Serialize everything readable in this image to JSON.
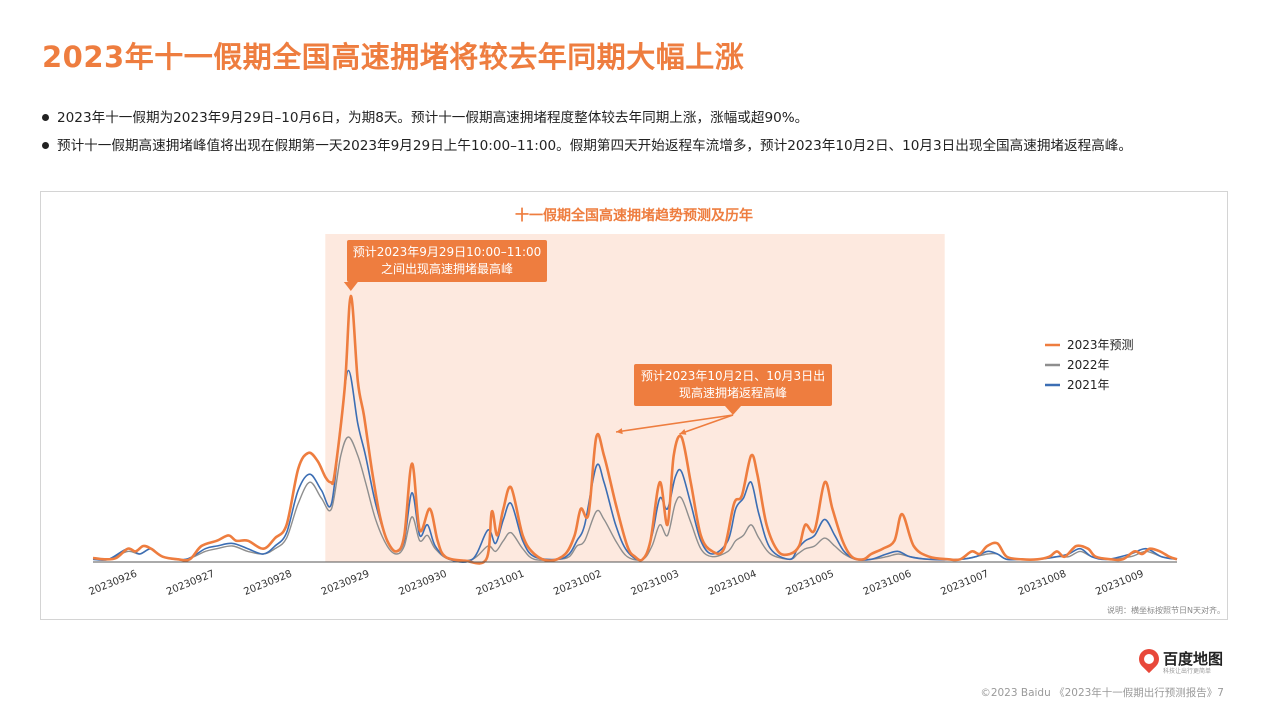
{
  "page_title": "2023年十一假期全国高速拥堵将较去年同期大幅上涨",
  "bullets": [
    "2023年十一假期为2023年9月29日–10月6日，为期8天。预计十一假期高速拥堵程度整体较去年同期上涨，涨幅或超90%。",
    "预计十一假期高速拥堵峰值将出现在假期第一天2023年9月29日上午10:00–11:00。假期第四天开始返程车流增多，预计2023年10月2日、10月3日出现全国高速拥堵返程高峰。"
  ],
  "chart_data": {
    "type": "line",
    "title": "十一假期全国高速拥堵趋势预测及历年",
    "x_labels": [
      "20230926",
      "20230927",
      "20230928",
      "20230929",
      "20230930",
      "20231001",
      "20231002",
      "20231003",
      "20231004",
      "20231005",
      "20231006",
      "20231007",
      "20231008",
      "20231009"
    ],
    "x_range": [
      0,
      14
    ],
    "y_range": [
      0,
      100
    ],
    "y_axis_visible": false,
    "grid": false,
    "legend_position": "right",
    "highlight_range": [
      3,
      11
    ],
    "note": "说明：横坐标按照节日N天对齐。",
    "series": [
      {
        "name": "2023年预测",
        "color": "#ee7d3f",
        "width": 2.6,
        "points": [
          [
            0,
            1.5
          ],
          [
            0.15,
            1
          ],
          [
            0.3,
            1.5
          ],
          [
            0.45,
            5
          ],
          [
            0.55,
            4
          ],
          [
            0.65,
            6
          ],
          [
            0.75,
            5
          ],
          [
            0.9,
            2
          ],
          [
            1.1,
            1
          ],
          [
            1.25,
            1
          ],
          [
            1.4,
            6
          ],
          [
            1.6,
            8
          ],
          [
            1.75,
            10
          ],
          [
            1.85,
            8
          ],
          [
            2.0,
            8
          ],
          [
            2.2,
            5
          ],
          [
            2.35,
            9
          ],
          [
            2.5,
            14
          ],
          [
            2.65,
            35
          ],
          [
            2.78,
            41
          ],
          [
            2.9,
            38
          ],
          [
            3.0,
            32
          ],
          [
            3.07,
            30
          ],
          [
            3.12,
            33
          ],
          [
            3.25,
            65
          ],
          [
            3.33,
            100
          ],
          [
            3.42,
            68
          ],
          [
            3.5,
            55
          ],
          [
            3.6,
            35
          ],
          [
            3.7,
            18
          ],
          [
            3.8,
            8
          ],
          [
            3.92,
            4
          ],
          [
            4.02,
            10
          ],
          [
            4.12,
            37
          ],
          [
            4.22,
            12
          ],
          [
            4.35,
            20
          ],
          [
            4.45,
            8
          ],
          [
            4.55,
            2
          ],
          [
            4.8,
            0.5
          ],
          [
            5.08,
            1
          ],
          [
            5.15,
            19
          ],
          [
            5.22,
            10
          ],
          [
            5.3,
            20
          ],
          [
            5.4,
            28
          ],
          [
            5.55,
            10
          ],
          [
            5.7,
            3
          ],
          [
            5.9,
            0.5
          ],
          [
            6.1,
            3
          ],
          [
            6.22,
            10
          ],
          [
            6.3,
            20
          ],
          [
            6.4,
            18
          ],
          [
            6.5,
            47
          ],
          [
            6.6,
            40
          ],
          [
            6.75,
            22
          ],
          [
            6.9,
            6
          ],
          [
            7.0,
            2
          ],
          [
            7.1,
            1
          ],
          [
            7.2,
            8
          ],
          [
            7.32,
            30
          ],
          [
            7.42,
            14
          ],
          [
            7.5,
            40
          ],
          [
            7.6,
            47
          ],
          [
            7.72,
            30
          ],
          [
            7.85,
            10
          ],
          [
            8.0,
            4
          ],
          [
            8.15,
            5
          ],
          [
            8.28,
            22
          ],
          [
            8.38,
            25
          ],
          [
            8.5,
            40
          ],
          [
            8.58,
            33
          ],
          [
            8.7,
            14
          ],
          [
            8.85,
            4
          ],
          [
            9.0,
            3
          ],
          [
            9.12,
            6
          ],
          [
            9.2,
            14
          ],
          [
            9.32,
            12
          ],
          [
            9.45,
            30
          ],
          [
            9.55,
            20
          ],
          [
            9.68,
            8
          ],
          [
            9.8,
            2
          ],
          [
            9.95,
            1
          ],
          [
            10.05,
            3
          ],
          [
            10.2,
            5
          ],
          [
            10.35,
            8
          ],
          [
            10.45,
            18
          ],
          [
            10.6,
            6
          ],
          [
            10.8,
            2
          ],
          [
            11.05,
            1
          ],
          [
            11.2,
            1
          ],
          [
            11.35,
            4
          ],
          [
            11.45,
            3
          ],
          [
            11.55,
            6
          ],
          [
            11.68,
            7
          ],
          [
            11.8,
            2
          ],
          [
            12.0,
            1
          ],
          [
            12.2,
            1
          ],
          [
            12.35,
            2
          ],
          [
            12.45,
            4
          ],
          [
            12.55,
            2
          ],
          [
            12.7,
            6
          ],
          [
            12.85,
            5
          ],
          [
            12.95,
            2
          ],
          [
            13.15,
            1
          ],
          [
            13.3,
            1
          ],
          [
            13.45,
            4
          ],
          [
            13.55,
            3
          ],
          [
            13.65,
            5
          ],
          [
            13.78,
            4
          ],
          [
            13.9,
            2
          ],
          [
            14.0,
            1
          ]
        ]
      },
      {
        "name": "2022年",
        "color": "#8e8e8e",
        "width": 1.4,
        "points": [
          [
            0,
            1
          ],
          [
            0.2,
            1
          ],
          [
            0.45,
            4
          ],
          [
            0.6,
            3
          ],
          [
            0.75,
            5
          ],
          [
            0.9,
            2
          ],
          [
            1.2,
            1
          ],
          [
            1.45,
            4
          ],
          [
            1.6,
            5
          ],
          [
            1.8,
            6
          ],
          [
            2.0,
            4
          ],
          [
            2.2,
            3
          ],
          [
            2.35,
            5
          ],
          [
            2.5,
            9
          ],
          [
            2.65,
            22
          ],
          [
            2.8,
            30
          ],
          [
            2.95,
            24
          ],
          [
            3.08,
            20
          ],
          [
            3.2,
            40
          ],
          [
            3.3,
            47
          ],
          [
            3.42,
            40
          ],
          [
            3.52,
            30
          ],
          [
            3.65,
            16
          ],
          [
            3.8,
            6
          ],
          [
            3.92,
            3
          ],
          [
            4.02,
            6
          ],
          [
            4.12,
            17
          ],
          [
            4.22,
            8
          ],
          [
            4.32,
            10
          ],
          [
            4.42,
            5
          ],
          [
            4.6,
            1
          ],
          [
            4.9,
            1
          ],
          [
            5.1,
            6
          ],
          [
            5.2,
            4
          ],
          [
            5.3,
            8
          ],
          [
            5.4,
            11
          ],
          [
            5.55,
            5
          ],
          [
            5.7,
            1
          ],
          [
            6.0,
            1
          ],
          [
            6.15,
            2
          ],
          [
            6.25,
            6
          ],
          [
            6.35,
            8
          ],
          [
            6.5,
            19
          ],
          [
            6.6,
            16
          ],
          [
            6.75,
            8
          ],
          [
            6.9,
            2
          ],
          [
            7.1,
            1
          ],
          [
            7.22,
            6
          ],
          [
            7.32,
            14
          ],
          [
            7.42,
            10
          ],
          [
            7.52,
            22
          ],
          [
            7.6,
            24
          ],
          [
            7.72,
            15
          ],
          [
            7.85,
            5
          ],
          [
            8.0,
            2
          ],
          [
            8.2,
            4
          ],
          [
            8.3,
            8
          ],
          [
            8.4,
            10
          ],
          [
            8.5,
            14
          ],
          [
            8.6,
            9
          ],
          [
            8.75,
            3
          ],
          [
            9.0,
            1
          ],
          [
            9.1,
            3
          ],
          [
            9.2,
            5
          ],
          [
            9.32,
            6
          ],
          [
            9.45,
            9
          ],
          [
            9.58,
            6
          ],
          [
            9.7,
            3
          ],
          [
            9.85,
            1
          ],
          [
            10.05,
            1
          ],
          [
            10.25,
            2
          ],
          [
            10.4,
            3
          ],
          [
            10.55,
            2
          ],
          [
            10.8,
            1
          ],
          [
            11.2,
            1
          ],
          [
            11.4,
            2
          ],
          [
            11.55,
            3
          ],
          [
            11.68,
            3
          ],
          [
            11.8,
            1
          ],
          [
            12.0,
            1
          ],
          [
            12.2,
            1
          ],
          [
            12.45,
            2
          ],
          [
            12.6,
            2
          ],
          [
            12.75,
            4
          ],
          [
            12.9,
            2
          ],
          [
            13.1,
            1
          ],
          [
            13.4,
            2
          ],
          [
            13.6,
            4
          ],
          [
            13.8,
            2
          ],
          [
            14.0,
            1
          ]
        ]
      },
      {
        "name": "2021年",
        "color": "#3c6eb4",
        "width": 1.6,
        "points": [
          [
            0,
            1
          ],
          [
            0.2,
            1
          ],
          [
            0.45,
            5
          ],
          [
            0.6,
            3
          ],
          [
            0.75,
            5
          ],
          [
            0.9,
            2
          ],
          [
            1.2,
            1
          ],
          [
            1.45,
            5
          ],
          [
            1.6,
            6
          ],
          [
            1.8,
            7
          ],
          [
            2.0,
            5
          ],
          [
            2.2,
            3
          ],
          [
            2.35,
            6
          ],
          [
            2.5,
            11
          ],
          [
            2.65,
            27
          ],
          [
            2.8,
            33
          ],
          [
            2.95,
            27
          ],
          [
            3.08,
            22
          ],
          [
            3.2,
            52
          ],
          [
            3.3,
            72
          ],
          [
            3.42,
            52
          ],
          [
            3.52,
            40
          ],
          [
            3.65,
            22
          ],
          [
            3.8,
            8
          ],
          [
            3.92,
            4
          ],
          [
            4.02,
            8
          ],
          [
            4.12,
            26
          ],
          [
            4.22,
            10
          ],
          [
            4.32,
            14
          ],
          [
            4.42,
            6
          ],
          [
            4.6,
            1
          ],
          [
            4.9,
            1
          ],
          [
            5.1,
            12
          ],
          [
            5.2,
            7
          ],
          [
            5.3,
            16
          ],
          [
            5.4,
            22
          ],
          [
            5.55,
            8
          ],
          [
            5.7,
            2
          ],
          [
            6.0,
            1
          ],
          [
            6.15,
            3
          ],
          [
            6.25,
            8
          ],
          [
            6.35,
            14
          ],
          [
            6.5,
            36
          ],
          [
            6.6,
            30
          ],
          [
            6.75,
            14
          ],
          [
            6.9,
            4
          ],
          [
            7.1,
            1
          ],
          [
            7.22,
            10
          ],
          [
            7.32,
            24
          ],
          [
            7.42,
            20
          ],
          [
            7.52,
            32
          ],
          [
            7.6,
            34
          ],
          [
            7.72,
            22
          ],
          [
            7.85,
            8
          ],
          [
            8.0,
            3
          ],
          [
            8.2,
            8
          ],
          [
            8.3,
            20
          ],
          [
            8.4,
            24
          ],
          [
            8.5,
            30
          ],
          [
            8.6,
            18
          ],
          [
            8.75,
            5
          ],
          [
            9.0,
            1
          ],
          [
            9.1,
            5
          ],
          [
            9.2,
            8
          ],
          [
            9.32,
            10
          ],
          [
            9.45,
            16
          ],
          [
            9.58,
            10
          ],
          [
            9.7,
            4
          ],
          [
            9.85,
            1
          ],
          [
            10.05,
            1
          ],
          [
            10.25,
            3
          ],
          [
            10.4,
            4
          ],
          [
            10.55,
            2
          ],
          [
            10.8,
            1
          ],
          [
            11.2,
            1
          ],
          [
            11.4,
            2
          ],
          [
            11.55,
            4
          ],
          [
            11.68,
            3
          ],
          [
            11.8,
            1
          ],
          [
            12.0,
            1
          ],
          [
            12.2,
            1
          ],
          [
            12.45,
            2
          ],
          [
            12.6,
            3
          ],
          [
            12.75,
            5
          ],
          [
            12.9,
            2
          ],
          [
            13.1,
            1
          ],
          [
            13.4,
            3
          ],
          [
            13.6,
            5
          ],
          [
            13.8,
            2
          ],
          [
            14.0,
            1
          ]
        ]
      }
    ],
    "annotations": [
      {
        "lines": [
          "预计2023年9月29日10:00–11:00",
          "之间出现高速拥堵最高峰"
        ],
        "targets": [
          [
            3.33,
            100
          ]
        ]
      },
      {
        "lines": [
          "预计2023年10月2日、10月3日出",
          "现高速拥堵返程高峰"
        ],
        "targets": [
          [
            6.6,
            47
          ],
          [
            7.6,
            47
          ]
        ]
      }
    ]
  },
  "logo": {
    "text": "百度地图",
    "subtext": "科技让出行更简单"
  },
  "footer": "©2023 Baidu 《2023年十一假期出行预测报告》7"
}
